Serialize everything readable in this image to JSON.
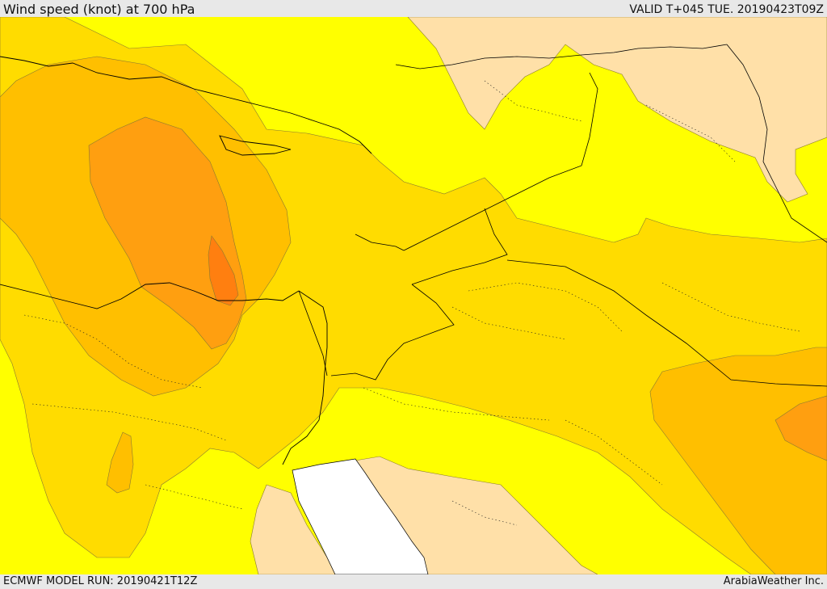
{
  "header": {
    "title": "Wind speed (knot) at 700 hPa",
    "valid_time": "VALID T+045 TUE. 20190423T09Z"
  },
  "footer": {
    "model_run": "ECMWF MODEL RUN: 20190421T12Z",
    "credit": "ArabiaWeather Inc."
  },
  "map": {
    "variable": "wind speed at 700 hPa",
    "colors": {
      "weakest": "#ffe0a8",
      "level_1": "#ffff00",
      "level_2": "#ffdc00",
      "level_3": "#ffbf00",
      "level_4": "#ff9f10",
      "strongest": "#ff7f10",
      "sea": "#ffffff",
      "contour_line": "#8a7a30",
      "border_line": "#000000"
    }
  }
}
